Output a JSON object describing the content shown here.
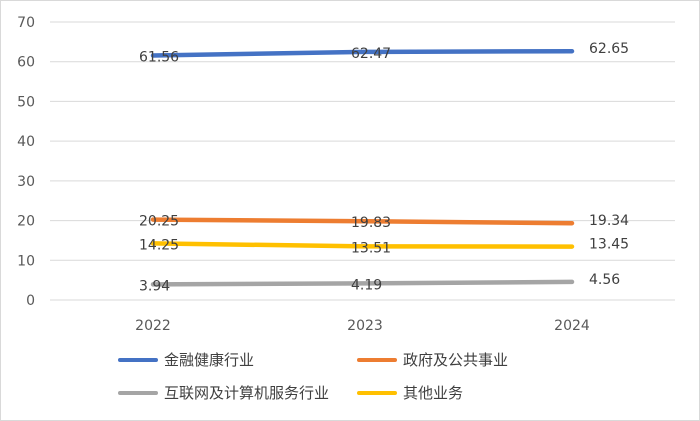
{
  "chart_data": {
    "type": "line",
    "categories": [
      "2022",
      "2023",
      "2024"
    ],
    "ylim": [
      0,
      70
    ],
    "yticks": [
      "0",
      "10",
      "20",
      "30",
      "40",
      "50",
      "60",
      "70"
    ],
    "grid": true,
    "legend_position": "bottom",
    "series": [
      {
        "name": "金融健康行业",
        "color": "#4472C4",
        "values": [
          61.56,
          62.47,
          62.65
        ],
        "labels": [
          "61.56",
          "62.47",
          "62.65"
        ]
      },
      {
        "name": "政府及公共事业",
        "color": "#ED7D31",
        "values": [
          20.25,
          19.83,
          19.34
        ],
        "labels": [
          "20.25",
          "19.83",
          "19.34"
        ]
      },
      {
        "name": "互联网及计算机服务行业",
        "color": "#A5A5A5",
        "values": [
          3.94,
          4.19,
          4.56
        ],
        "labels": [
          "3.94",
          "4.19",
          "4.56"
        ]
      },
      {
        "name": "其他业务",
        "color": "#FFC000",
        "values": [
          14.25,
          13.51,
          13.45
        ],
        "labels": [
          "14.25",
          "13.51",
          "13.45"
        ]
      }
    ]
  }
}
